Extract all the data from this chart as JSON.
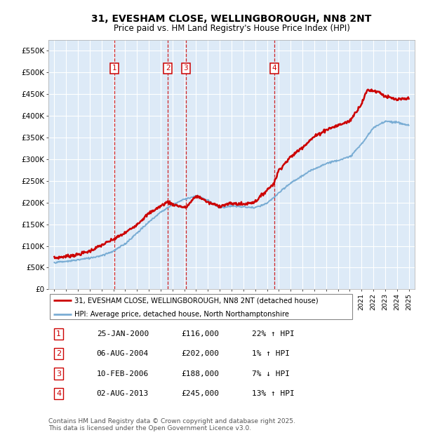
{
  "title_line1": "31, EVESHAM CLOSE, WELLINGBOROUGH, NN8 2NT",
  "title_line2": "Price paid vs. HM Land Registry's House Price Index (HPI)",
  "legend_label1": "31, EVESHAM CLOSE, WELLINGBOROUGH, NN8 2NT (detached house)",
  "legend_label2": "HPI: Average price, detached house, North Northamptonshire",
  "footer": "Contains HM Land Registry data © Crown copyright and database right 2025.\nThis data is licensed under the Open Government Licence v3.0.",
  "transactions": [
    {
      "num": 1,
      "date": "25-JAN-2000",
      "price": 116000,
      "pct": "22%",
      "dir": "↑",
      "year": 2000.07
    },
    {
      "num": 2,
      "date": "06-AUG-2004",
      "price": 202000,
      "pct": "1%",
      "dir": "↑",
      "year": 2004.6
    },
    {
      "num": 3,
      "date": "10-FEB-2006",
      "price": 188000,
      "pct": "7%",
      "dir": "↓",
      "year": 2006.12
    },
    {
      "num": 4,
      "date": "02-AUG-2013",
      "price": 245000,
      "pct": "13%",
      "dir": "↑",
      "year": 2013.6
    }
  ],
  "red_color": "#cc0000",
  "blue_color": "#7aadd4",
  "dashed_color": "#cc0000",
  "bg_color": "#ddeaf7",
  "grid_color": "#ffffff",
  "ylim": [
    0,
    575000
  ],
  "yticks": [
    0,
    50000,
    100000,
    150000,
    200000,
    250000,
    300000,
    350000,
    400000,
    450000,
    500000,
    550000
  ],
  "xlim_start": 1994.5,
  "xlim_end": 2025.5,
  "red_years": [
    1995,
    1996,
    1997,
    1998,
    1998.5,
    2000.07,
    2001,
    2002,
    2003,
    2004.6,
    2005,
    2006.12,
    2007,
    2007.5,
    2008,
    2009,
    2010,
    2011,
    2012,
    2013.6,
    2014,
    2015,
    2016,
    2017,
    2018,
    2019,
    2020,
    2021,
    2021.5,
    2022,
    2022.5,
    2023,
    2024,
    2025
  ],
  "red_vals": [
    72000,
    76000,
    80000,
    88000,
    95000,
    116000,
    130000,
    150000,
    175000,
    202000,
    196000,
    188000,
    215000,
    210000,
    200000,
    192000,
    198000,
    196000,
    202000,
    245000,
    275000,
    305000,
    328000,
    352000,
    368000,
    378000,
    388000,
    428000,
    460000,
    458000,
    455000,
    445000,
    437000,
    440000
  ],
  "blue_years": [
    1995,
    1996,
    1997,
    1998,
    1999,
    2000,
    2001,
    2002,
    2003,
    2004,
    2005,
    2006,
    2007,
    2008,
    2009,
    2010,
    2011,
    2012,
    2013,
    2014,
    2015,
    2016,
    2017,
    2018,
    2019,
    2020,
    2021,
    2022,
    2023,
    2024,
    2025
  ],
  "blue_vals": [
    62000,
    64000,
    68000,
    72000,
    78000,
    88000,
    105000,
    130000,
    155000,
    178000,
    195000,
    208000,
    215000,
    205000,
    188000,
    192000,
    190000,
    188000,
    198000,
    222000,
    245000,
    262000,
    278000,
    290000,
    298000,
    305000,
    335000,
    372000,
    388000,
    385000,
    378000
  ]
}
